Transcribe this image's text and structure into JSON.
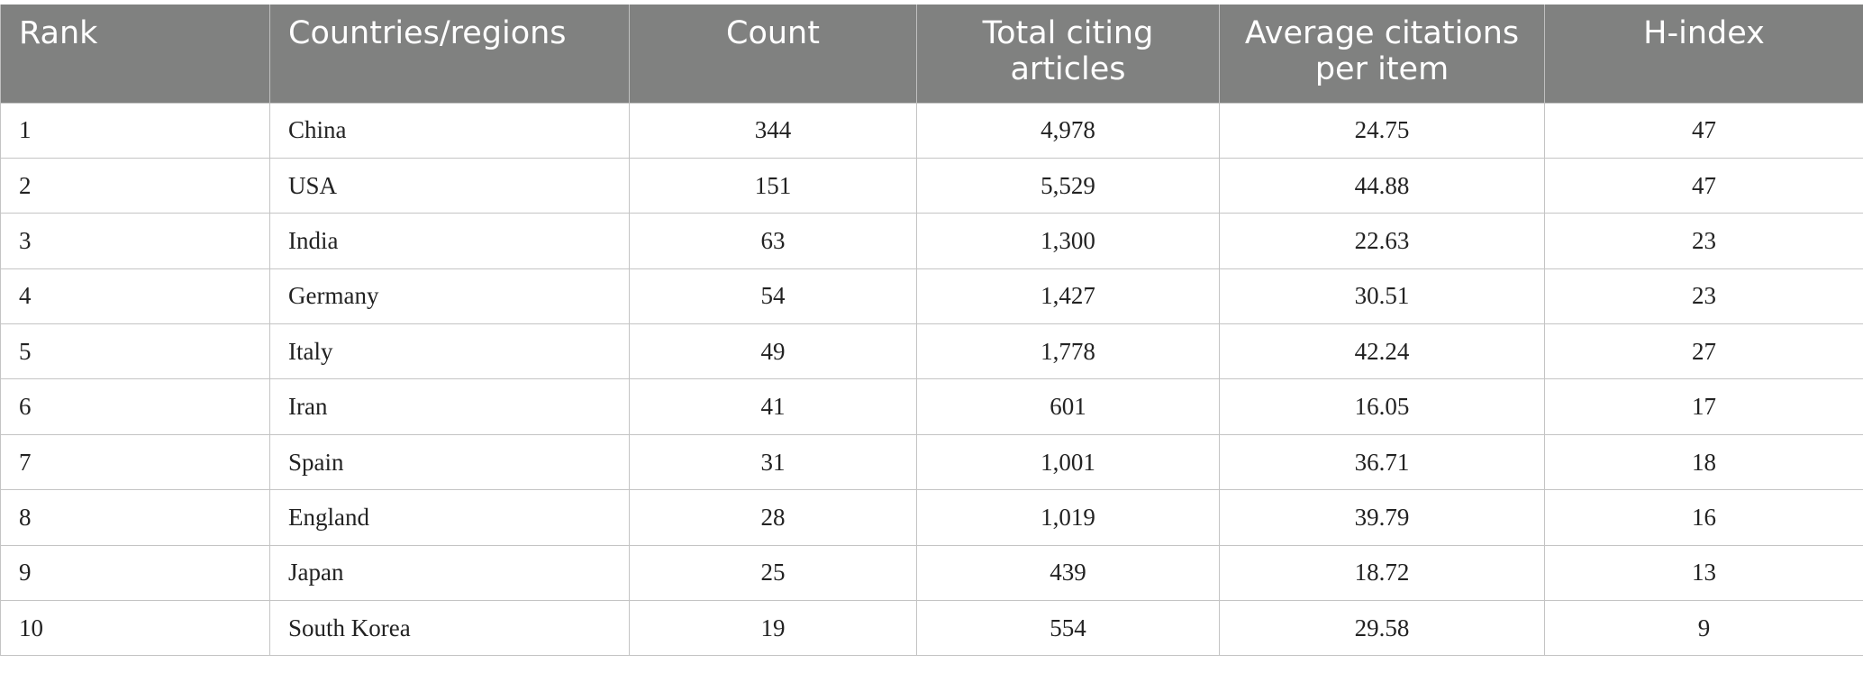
{
  "table": {
    "headers": [
      "Rank",
      "Countries/regions",
      "Count",
      "Total citing articles",
      "Average citations per item",
      "H-index"
    ],
    "rows": [
      [
        "1",
        "China",
        "344",
        "4,978",
        "24.75",
        "47"
      ],
      [
        "2",
        "USA",
        "151",
        "5,529",
        "44.88",
        "47"
      ],
      [
        "3",
        "India",
        "63",
        "1,300",
        "22.63",
        "23"
      ],
      [
        "4",
        "Germany",
        "54",
        "1,427",
        "30.51",
        "23"
      ],
      [
        "5",
        "Italy",
        "49",
        "1,778",
        "42.24",
        "27"
      ],
      [
        "6",
        "Iran",
        "41",
        "601",
        "16.05",
        "17"
      ],
      [
        "7",
        "Spain",
        "31",
        "1,001",
        "36.71",
        "18"
      ],
      [
        "8",
        "England",
        "28",
        "1,019",
        "39.79",
        "16"
      ],
      [
        "9",
        "Japan",
        "25",
        "439",
        "18.72",
        "13"
      ],
      [
        "10",
        "South Korea",
        "19",
        "554",
        "29.58",
        "9"
      ]
    ]
  }
}
